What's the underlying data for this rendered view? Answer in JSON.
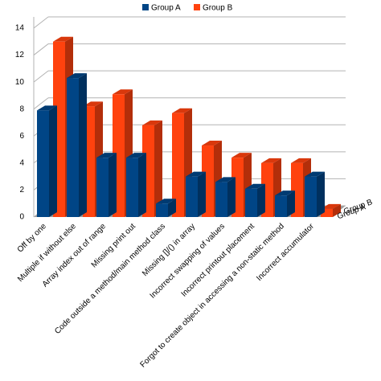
{
  "chart_data": {
    "type": "bar3d",
    "categories": [
      "Off by one",
      "Multiple if without else",
      "Array index out of range",
      "Missing print out",
      "Code outside a method/main method class",
      "Missing []/() in array",
      "Incorrect swapping of values",
      "Incorrect printout placement",
      "Forgot to create object in accessing a non-static method",
      "Incorrect accumulator"
    ],
    "series": [
      {
        "name": "Group A",
        "color": "#004586",
        "values": [
          7.9,
          10.3,
          4.4,
          4.4,
          1,
          3,
          2.6,
          2.1,
          1.6,
          3
        ]
      },
      {
        "name": "Group B",
        "color": "#ff420e",
        "values": [
          13,
          8.2,
          9.1,
          6.8,
          7.7,
          5.3,
          4.4,
          4,
          4,
          0.6
        ]
      }
    ],
    "ylim": [
      0,
      14
    ],
    "yticks": [
      0,
      2,
      4,
      6,
      8,
      10,
      12,
      14
    ],
    "grid": true,
    "legend": "top"
  }
}
